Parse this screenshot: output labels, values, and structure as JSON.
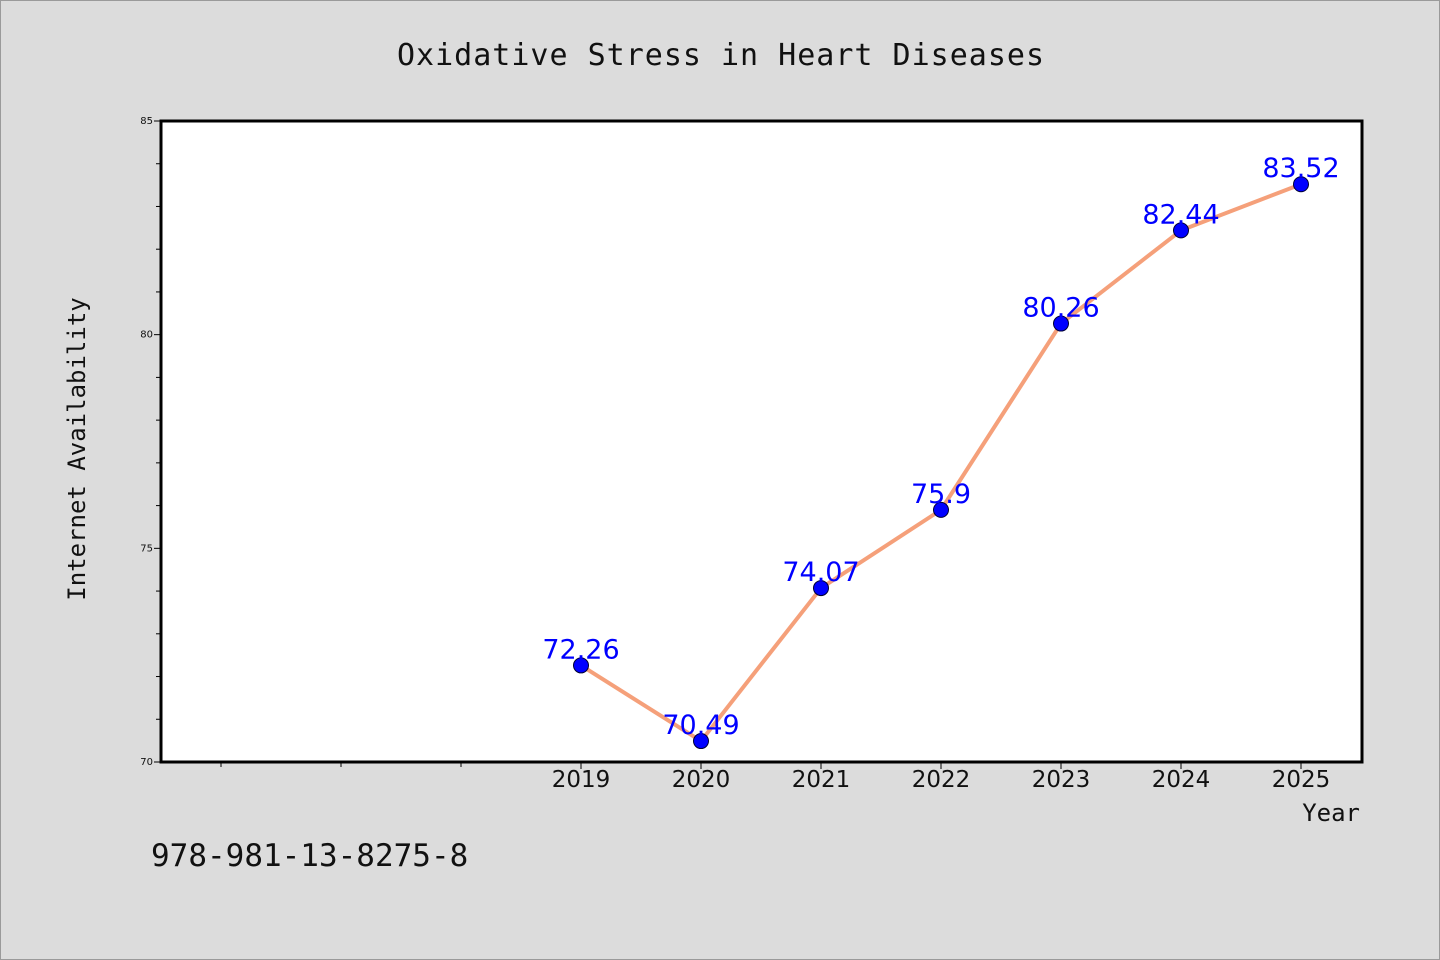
{
  "chart_data": {
    "type": "line",
    "title": "Oxidative Stress in Heart Diseases",
    "xlabel": "Year",
    "ylabel": "Internet Availability",
    "x_ticks": [
      "2019",
      "2020",
      "2021",
      "2022",
      "2023",
      "2024",
      "2025"
    ],
    "y_ticks": [
      "70",
      "75",
      "80",
      "85"
    ],
    "ylim": [
      70,
      85
    ],
    "grid": false,
    "series": [
      {
        "x": [
          "2019",
          "2020",
          "2021",
          "2022",
          "2023",
          "2024",
          "2025"
        ],
        "values": [
          72.26,
          70.49,
          74.07,
          75.9,
          80.26,
          82.44,
          83.52
        ],
        "labels": [
          "72.26",
          "70.49",
          "74.07",
          "75.9",
          "80.26",
          "82.44",
          "83.52"
        ],
        "line_color": "#f5a07a",
        "marker_color": "#0000ff"
      }
    ],
    "footer": "978-981-13-8275-8"
  }
}
